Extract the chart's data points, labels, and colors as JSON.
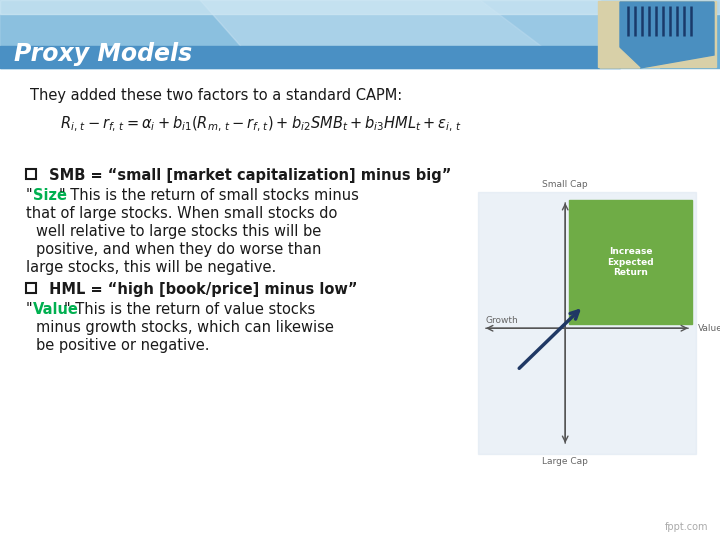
{
  "title": "Proxy Models",
  "title_color": "#ffffff",
  "bg_color": "#ffffff",
  "subtitle": "They added these two factors to a standard CAPM:",
  "formula": "$R_{i,\\,t} - r_{f,\\,t} = \\alpha_i + b_{i1}(R_{m,\\,t} - r_{f,\\,t}) + b_{i2}SMB_t + b_{i3}HML_t + \\varepsilon_{i,\\,t}$",
  "smb_label": " SMB = “small [market capitalization] minus big”",
  "smb_size_colored": "Size",
  "hml_label": " HML = “high [book/price] minus low”",
  "hml_value_colored": "Value",
  "size_color": "#00b050",
  "value_color": "#00b050",
  "text_color": "#1a1a1a",
  "bold_color": "#1a1a1a",
  "header_blue_dark": "#4a90c4",
  "header_blue_mid": "#6aaed6",
  "header_blue_light": "#a8d0e8",
  "chart_bg": "#dce6f1",
  "chart_green": "#6fac46",
  "chart_arrow": "#1f3864",
  "chart_axis": "#555555",
  "fppt_color": "#aaaaaa",
  "icon_beige": "#d8d0a8",
  "icon_blue": "#4a8fc0"
}
